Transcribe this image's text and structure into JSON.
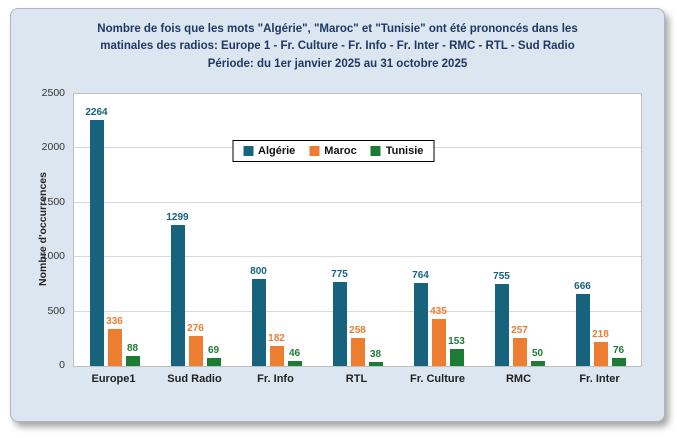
{
  "chart_data": {
    "type": "bar",
    "title_lines": [
      "Nombre de fois que les mots \"Algérie\", \"Maroc\" et \"Tunisie\" ont été prononcés dans les",
      "matinales des radios: Europe 1 - Fr. Culture - Fr. Info - Fr. Inter - RMC - RTL - Sud Radio",
      "Période: du 1er janvier 2025 au 31 octobre 2025"
    ],
    "ylabel": "Nombre d'occurrences",
    "ylim": [
      0,
      2500
    ],
    "yticks": [
      0,
      500,
      1000,
      1500,
      2000,
      2500
    ],
    "grid": true,
    "legend_position": "top-center-inside",
    "categories": [
      "Europe1",
      "Sud Radio",
      "Fr. Info",
      "RTL",
      "Fr. Culture",
      "RMC",
      "Fr. Inter"
    ],
    "series": [
      {
        "name": "Algérie",
        "color": "#17637E",
        "values": [
          2264,
          1299,
          800,
          775,
          764,
          755,
          666
        ]
      },
      {
        "name": "Maroc",
        "color": "#ED7D31",
        "values": [
          336,
          276,
          182,
          258,
          435,
          257,
          218
        ]
      },
      {
        "name": "Tunisie",
        "color": "#1E7B34",
        "values": [
          88,
          69,
          46,
          38,
          153,
          50,
          76
        ]
      }
    ],
    "colors": {
      "card_background": "#dce6f1",
      "title_text": "#1f3864",
      "plot_background": "#ffffff",
      "gridline": "#d9d9d9"
    }
  }
}
